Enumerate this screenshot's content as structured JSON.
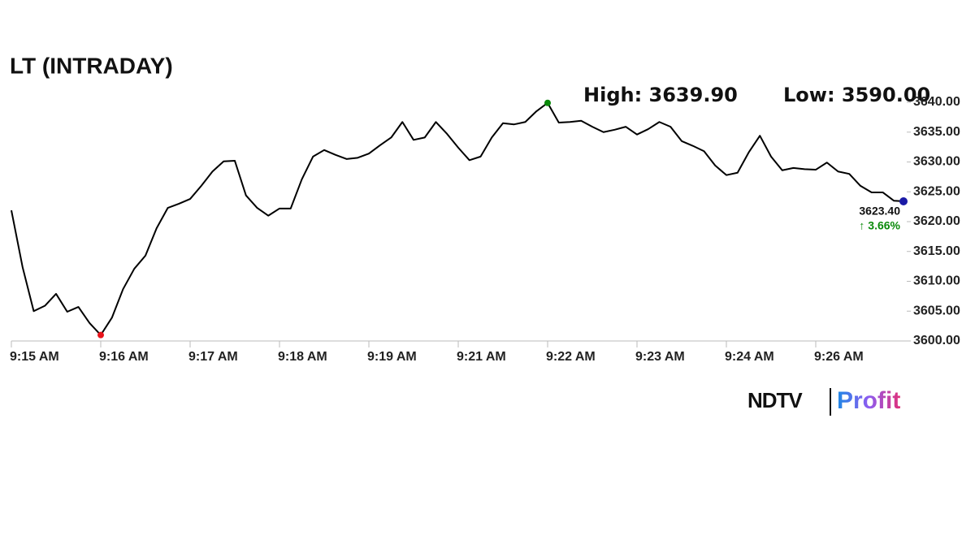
{
  "chart_data": {
    "type": "line",
    "title": "LT (INTRADAY)",
    "high_label": "High: 3639.90",
    "low_label": "Low: 3590.00",
    "categories": [
      "9:15 AM",
      null,
      null,
      null,
      null,
      null,
      null,
      null,
      "9:16 AM",
      null,
      null,
      null,
      null,
      null,
      null,
      null,
      "9:17 AM",
      null,
      null,
      null,
      null,
      null,
      null,
      null,
      "9:18 AM",
      null,
      null,
      null,
      null,
      null,
      null,
      null,
      "9:19 AM",
      null,
      null,
      null,
      null,
      null,
      null,
      null,
      "9:21 AM",
      null,
      null,
      null,
      null,
      null,
      null,
      null,
      "9:22 AM",
      null,
      null,
      null,
      null,
      null,
      null,
      null,
      "9:23 AM",
      null,
      null,
      null,
      null,
      null,
      null,
      null,
      "9:24 AM",
      null,
      null,
      null,
      null,
      null,
      null,
      null,
      "9:26 AM",
      null,
      null,
      null,
      null,
      null,
      null,
      null,
      null
    ],
    "series": [
      {
        "color": "#000000",
        "values": [
          3621.9,
          3612.4,
          3605.0,
          3605.9,
          3607.9,
          3604.9,
          3605.7,
          3603.0,
          3601.0,
          3603.9,
          3608.7,
          3612.1,
          3614.3,
          3618.9,
          3622.3,
          3623.0,
          3623.8,
          3626.0,
          3628.4,
          3630.1,
          3630.2,
          3624.4,
          3622.3,
          3621.0,
          3622.2,
          3622.2,
          3627.1,
          3630.9,
          3632.0,
          3631.2,
          3630.5,
          3630.7,
          3631.4,
          3632.8,
          3634.1,
          3636.7,
          3633.7,
          3634.1,
          3636.7,
          3634.7,
          3632.4,
          3630.3,
          3630.9,
          3634.1,
          3636.5,
          3636.3,
          3636.7,
          3638.5,
          3639.9,
          3636.6,
          3636.7,
          3636.9,
          3635.9,
          3635.0,
          3635.4,
          3635.9,
          3634.6,
          3635.5,
          3636.7,
          3635.9,
          3633.5,
          3632.7,
          3631.8,
          3629.4,
          3627.8,
          3628.2,
          3631.6,
          3634.4,
          3630.9,
          3628.6,
          3629.0,
          3628.8,
          3628.7,
          3629.9,
          3628.4,
          3628.0,
          3626.0,
          3624.9,
          3624.9,
          3623.5,
          3623.4
        ]
      }
    ],
    "last_value_label": "3623.40",
    "change_label": "↑ 3.66%",
    "low_color": "#e8141b",
    "high_color": "#0a8a0a",
    "last_color": "#1a1aa6",
    "change_color": "#0a8a0a",
    "ylim": [
      3600,
      3640
    ],
    "yticks": [
      {
        "value": 3600,
        "label": "3600.00"
      },
      {
        "value": 3605,
        "label": "3605.00"
      },
      {
        "value": 3610,
        "label": "3610.00"
      },
      {
        "value": 3615,
        "label": "3615.00"
      },
      {
        "value": 3620,
        "label": "3620.00"
      },
      {
        "value": 3625,
        "label": "3625.00"
      },
      {
        "value": 3630,
        "label": "3630.00"
      },
      {
        "value": 3635,
        "label": "3635.00"
      },
      {
        "value": 3640,
        "label": "3640.00"
      }
    ],
    "grid": false
  },
  "branding": {
    "left": "NDTV",
    "right": "Profit"
  }
}
